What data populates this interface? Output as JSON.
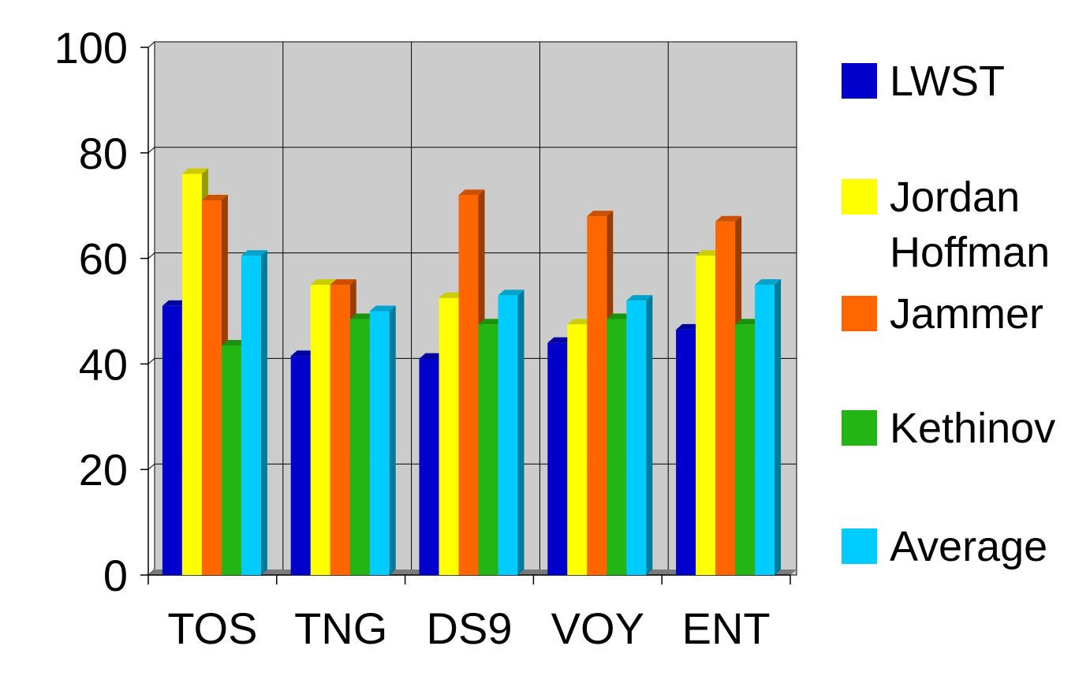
{
  "chart_data": {
    "type": "bar",
    "title": "",
    "xlabel": "",
    "ylabel": "",
    "ylim": [
      0,
      100
    ],
    "y_ticks": [
      0,
      20,
      40,
      60,
      80,
      100
    ],
    "grid": true,
    "legend_position": "right",
    "categories": [
      "TOS",
      "TNG",
      "DS9",
      "VOY",
      "ENT"
    ],
    "series": [
      {
        "name": "LWST",
        "legend_lines": [
          "LWST"
        ],
        "color": "#0000cc",
        "values": [
          51,
          41.5,
          41,
          44,
          46.5
        ]
      },
      {
        "name": "Jordan Hoffman",
        "legend_lines": [
          "Jordan",
          "Hoffman"
        ],
        "color": "#ffff00",
        "values": [
          76,
          55,
          52.5,
          47.5,
          60.5
        ]
      },
      {
        "name": "Jammer",
        "legend_lines": [
          "Jammer"
        ],
        "color": "#ff6600",
        "values": [
          71,
          55,
          72,
          68,
          67
        ]
      },
      {
        "name": "Kethinov",
        "legend_lines": [
          "Kethinov"
        ],
        "color": "#22b514",
        "values": [
          43.5,
          48.5,
          47.5,
          48.5,
          47.5
        ]
      },
      {
        "name": "Average",
        "legend_lines": [
          "Average"
        ],
        "color": "#00ccff",
        "values": [
          60.5,
          50,
          53,
          52,
          55
        ]
      }
    ]
  }
}
